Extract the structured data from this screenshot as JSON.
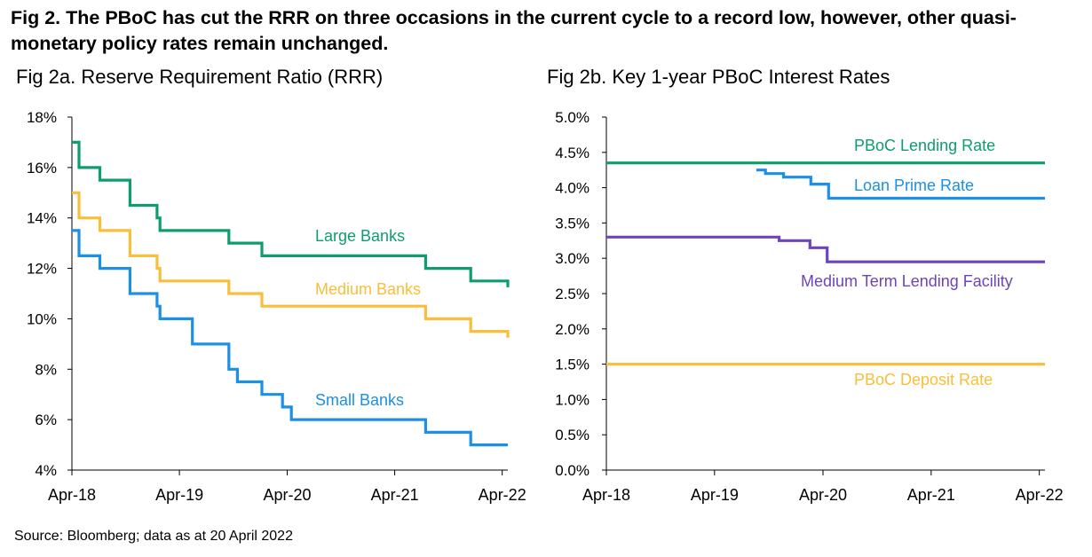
{
  "title": "Fig 2. The PBoC has cut the RRR on three occasions in the current cycle to a record low, however, other quasi-monetary policy rates remain unchanged.",
  "source": "Source: Bloomberg; data as at 20 April 2022",
  "colors": {
    "green": "#0f9d6b",
    "yellow": "#f9be3a",
    "blue": "#1c8fe6",
    "purple": "#6e45b8",
    "axis": "#000000"
  },
  "chart_data": [
    {
      "type": "line",
      "title": "Fig 2a. Reserve Requirement Ratio (RRR)",
      "xlabel": "",
      "ylabel": "",
      "x_ticks": [
        "Apr-18",
        "Apr-19",
        "Apr-20",
        "Apr-21",
        "Apr-22"
      ],
      "y_ticks": [
        "4%",
        "6%",
        "8%",
        "10%",
        "12%",
        "14%",
        "16%",
        "18%"
      ],
      "ylim": [
        4,
        18
      ],
      "xlim": [
        "2018-04-01",
        "2022-04-20"
      ],
      "grid": false,
      "series": [
        {
          "name": "Large Banks",
          "color": "#0f9d6b",
          "x": [
            "2018-04-01",
            "2018-04-25",
            "2018-07-05",
            "2018-10-15",
            "2019-01-15",
            "2019-01-25",
            "2019-05-15",
            "2019-09-16",
            "2020-01-06",
            "2021-07-15",
            "2021-12-15",
            "2022-04-20"
          ],
          "y": [
            17.0,
            16.0,
            15.5,
            14.5,
            14.0,
            13.5,
            13.5,
            13.0,
            12.5,
            12.0,
            11.5,
            11.25
          ]
        },
        {
          "name": "Medium Banks",
          "color": "#f9be3a",
          "x": [
            "2018-04-01",
            "2018-04-25",
            "2018-07-05",
            "2018-10-15",
            "2019-01-15",
            "2019-01-25",
            "2019-05-15",
            "2019-09-16",
            "2020-01-06",
            "2021-07-15",
            "2021-12-15",
            "2022-04-20"
          ],
          "y": [
            15.0,
            14.0,
            13.5,
            12.5,
            12.0,
            11.5,
            11.5,
            11.0,
            10.5,
            10.0,
            9.5,
            9.25
          ]
        },
        {
          "name": "Small Banks",
          "color": "#1c8fe6",
          "x": [
            "2018-04-01",
            "2018-04-25",
            "2018-07-05",
            "2018-10-15",
            "2019-01-15",
            "2019-01-25",
            "2019-05-15",
            "2019-09-16",
            "2019-10-15",
            "2020-01-06",
            "2020-03-16",
            "2020-04-15",
            "2020-05-15",
            "2021-07-15",
            "2021-12-15",
            "2022-04-20"
          ],
          "y": [
            13.5,
            12.5,
            12.0,
            11.0,
            10.5,
            10.0,
            9.0,
            8.0,
            7.5,
            7.0,
            6.5,
            6.0,
            6.0,
            5.5,
            5.0,
            5.0
          ]
        }
      ]
    },
    {
      "type": "line",
      "title": "Fig 2b. Key 1-year PBoC Interest Rates",
      "xlabel": "",
      "ylabel": "",
      "x_ticks": [
        "Apr-18",
        "Apr-19",
        "Apr-20",
        "Apr-21",
        "Apr-22"
      ],
      "y_ticks": [
        "0.0%",
        "0.5%",
        "1.0%",
        "1.5%",
        "2.0%",
        "2.5%",
        "3.0%",
        "3.5%",
        "4.0%",
        "4.5%",
        "5.0%"
      ],
      "ylim": [
        0,
        5
      ],
      "xlim": [
        "2018-04-01",
        "2022-04-20"
      ],
      "grid": false,
      "series": [
        {
          "name": "PBoC Lending Rate",
          "color": "#0f9d6b",
          "x": [
            "2018-04-01",
            "2022-04-20"
          ],
          "y": [
            4.35,
            4.35
          ]
        },
        {
          "name": "Loan Prime Rate",
          "color": "#1c8fe6",
          "x": [
            "2019-08-20",
            "2019-09-20",
            "2019-11-20",
            "2020-02-20",
            "2020-04-20",
            "2022-04-20"
          ],
          "y": [
            4.25,
            4.2,
            4.15,
            4.05,
            3.85,
            3.85
          ]
        },
        {
          "name": "Medium Term Lending Facility",
          "color": "#6e45b8",
          "x": [
            "2018-04-01",
            "2019-11-05",
            "2020-02-17",
            "2020-04-15",
            "2022-04-20"
          ],
          "y": [
            3.3,
            3.25,
            3.15,
            2.95,
            2.95
          ]
        },
        {
          "name": "PBoC Deposit Rate",
          "color": "#f9be3a",
          "x": [
            "2018-04-01",
            "2022-04-20"
          ],
          "y": [
            1.5,
            1.5
          ]
        }
      ]
    }
  ]
}
